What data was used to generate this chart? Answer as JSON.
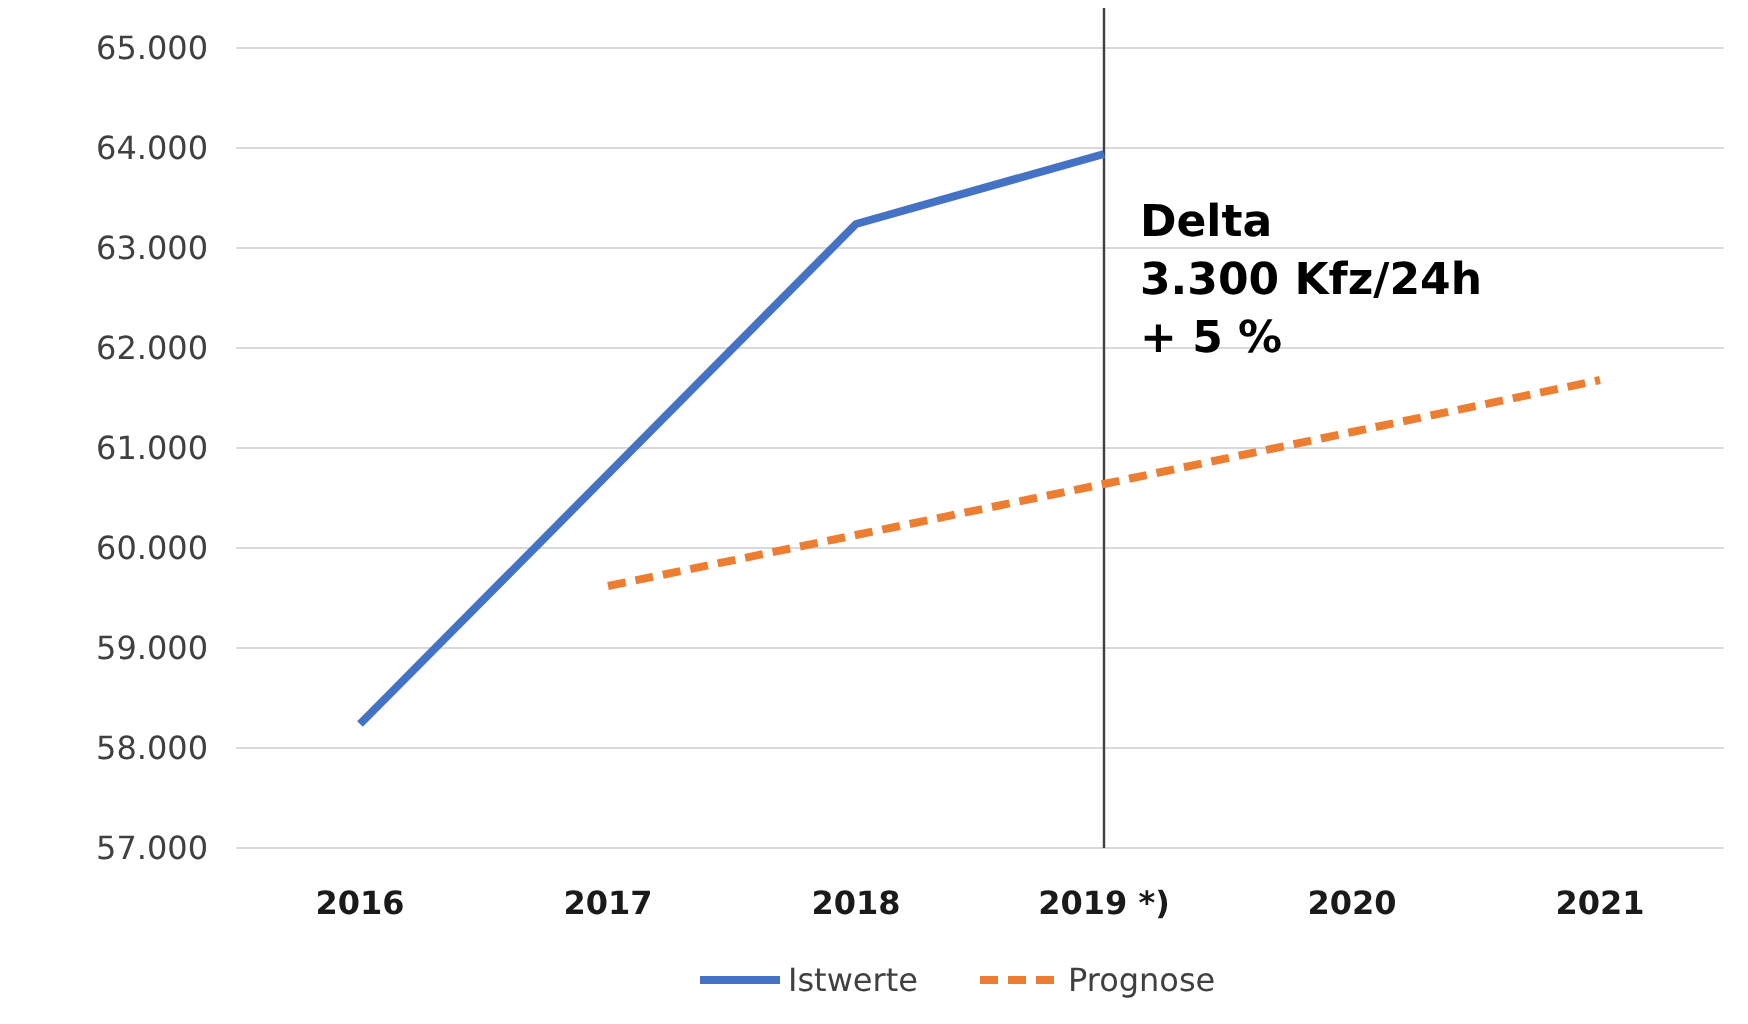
{
  "chart_data": {
    "type": "line",
    "categories": [
      "2016",
      "2017",
      "2018",
      "2019 *)",
      "2020",
      "2021"
    ],
    "series": [
      {
        "name": "Istwerte",
        "color": "#4472c4",
        "values": [
          58240,
          60740,
          63240,
          63940,
          null,
          null
        ],
        "line_style": "solid"
      },
      {
        "name": "Prognose",
        "color": "#ed7d31",
        "values": [
          null,
          59620,
          60130,
          60640,
          61160,
          61680
        ],
        "line_style": "dashed"
      }
    ],
    "ylim": [
      57000,
      65000
    ],
    "yticks": [
      {
        "value": 57000,
        "label": "57.000"
      },
      {
        "value": 58000,
        "label": "58.000"
      },
      {
        "value": 59000,
        "label": "59.000"
      },
      {
        "value": 60000,
        "label": "60.000"
      },
      {
        "value": 61000,
        "label": "61.000"
      },
      {
        "value": 62000,
        "label": "62.000"
      },
      {
        "value": 63000,
        "label": "63.000"
      },
      {
        "value": 64000,
        "label": "64.000"
      },
      {
        "value": 65000,
        "label": "65.000"
      }
    ],
    "grid": "y",
    "legend": "bottom",
    "marker": "none",
    "ref_lines": [
      {
        "axis": "x",
        "value": "2019 *)",
        "color": "#404040"
      }
    ],
    "annotations": [
      "Delta",
      "3.300 Kfz/24h",
      "+ 5 %"
    ]
  }
}
